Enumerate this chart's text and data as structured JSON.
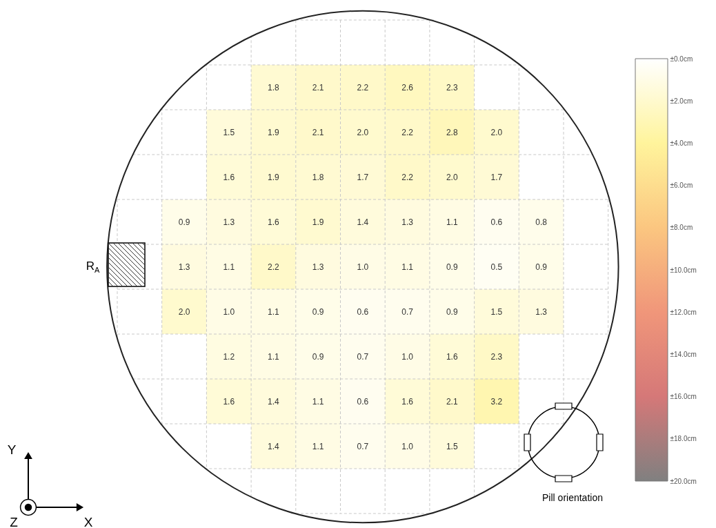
{
  "chart_data": {
    "type": "heatmap",
    "categories": [
      null,
      null,
      null,
      null,
      null,
      null,
      null,
      null,
      null
    ],
    "y_categories": [
      null,
      null,
      null,
      null,
      null,
      null,
      null,
      null,
      null
    ],
    "cells": [
      [
        null,
        null,
        1.8,
        2.1,
        2.2,
        2.6,
        2.3,
        null,
        null
      ],
      [
        null,
        1.5,
        1.9,
        2.1,
        2.0,
        2.2,
        2.8,
        2.0,
        null
      ],
      [
        null,
        1.6,
        1.9,
        1.8,
        1.7,
        2.2,
        2.0,
        1.7,
        null
      ],
      [
        0.9,
        1.3,
        1.6,
        1.9,
        1.4,
        1.3,
        1.1,
        0.6,
        0.8
      ],
      [
        1.3,
        1.1,
        2.2,
        1.3,
        1.0,
        1.1,
        0.9,
        0.5,
        0.9
      ],
      [
        2.0,
        1.0,
        1.1,
        0.9,
        0.6,
        0.7,
        0.9,
        1.5,
        1.3
      ],
      [
        null,
        1.2,
        1.1,
        0.9,
        0.7,
        1.0,
        1.6,
        2.3,
        null
      ],
      [
        null,
        1.6,
        1.4,
        1.1,
        0.6,
        1.6,
        2.1,
        3.2,
        null
      ],
      [
        null,
        null,
        1.4,
        1.1,
        0.7,
        1.0,
        1.5,
        null,
        null
      ]
    ],
    "cell_labels": [
      [
        null,
        null,
        "1.8",
        "2.1",
        "2.2",
        "2.6",
        "2.3",
        null,
        null
      ],
      [
        null,
        "1.5",
        "1.9",
        "2.1",
        "2.0",
        "2.2",
        "2.8",
        "2.0",
        null
      ],
      [
        null,
        "1.6",
        "1.9",
        "1.8",
        "1.7",
        "2.2",
        "2.0",
        "1.7",
        null
      ],
      [
        "0.9",
        "1.3",
        "1.6",
        "1.9",
        "1.4",
        "1.3",
        "1.1",
        "0.6",
        "0.8"
      ],
      [
        "1.3",
        "1.1",
        "2.2",
        "1.3",
        "1.0",
        "1.1",
        "0.9",
        "0.5",
        "0.9"
      ],
      [
        "2.0",
        "1.0",
        "1.1",
        "0.9",
        "0.6",
        "0.7",
        "0.9",
        "1.5",
        "1.3"
      ],
      [
        null,
        "1.2",
        "1.1",
        "0.9",
        "0.7",
        "1.0",
        "1.6",
        "2.3",
        null
      ],
      [
        null,
        "1.6",
        "1.4",
        "1.1",
        "0.6",
        "1.6",
        "2.1",
        "3.2",
        null
      ],
      [
        null,
        null,
        "1.4",
        "1.1",
        "0.7",
        "1.0",
        "1.5",
        null,
        null
      ]
    ],
    "data_labels": true,
    "grid": true,
    "clim": [
      0,
      20
    ],
    "cticks": [
      {
        "value": 0,
        "label": "±0.0cm"
      },
      {
        "value": 2,
        "label": "±2.0cm"
      },
      {
        "value": 4,
        "label": "±4.0cm"
      },
      {
        "value": 6,
        "label": "±6.0cm"
      },
      {
        "value": 8,
        "label": "±8.0cm"
      },
      {
        "value": 10,
        "label": "±10.0cm"
      },
      {
        "value": 12,
        "label": "±12.0cm"
      },
      {
        "value": 14,
        "label": "±14.0cm"
      },
      {
        "value": 16,
        "label": "±16.0cm"
      },
      {
        "value": 18,
        "label": "±18.0cm"
      },
      {
        "value": 20,
        "label": "±20.0cm"
      }
    ],
    "annotations": [
      "R$_{A}$",
      "Pill orientation",
      "X",
      "Y",
      "Z"
    ]
  }
}
